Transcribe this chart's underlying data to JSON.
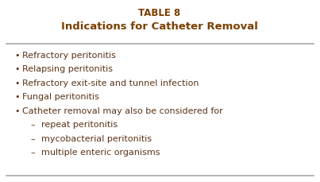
{
  "title_line1": "TABLE 8",
  "title_line2": "Indications for Catheter Removal",
  "title_color": "#7B3F00",
  "text_color": "#5C3317",
  "bg_color": "#FFFFFF",
  "bullet_items": [
    "Refractory peritonitis",
    "Relapsing peritonitis",
    "Refractory exit-site and tunnel infection",
    "Fungal peritonitis",
    "Catheter removal may also be considered for"
  ],
  "sub_items": [
    "repeat peritonitis",
    "mycobacterial peritonitis",
    "multiple enteric organisms"
  ],
  "font_size_title1": 8.5,
  "font_size_title2": 9.5,
  "font_size_body": 8.0,
  "line_color": "#AAAAAA"
}
